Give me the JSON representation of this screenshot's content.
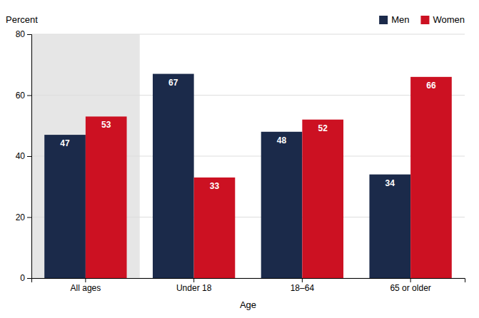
{
  "chart_data": {
    "type": "bar",
    "categories": [
      "All ages",
      "Under 18",
      "18–64",
      "65 or older"
    ],
    "series": [
      {
        "name": "Men",
        "color": "#1b2a4a",
        "values": [
          47,
          67,
          48,
          34
        ]
      },
      {
        "name": "Women",
        "color": "#cc1122",
        "values": [
          53,
          33,
          52,
          66
        ]
      }
    ],
    "xlabel": "Age",
    "ylabel": "Percent",
    "ylim": [
      0,
      80
    ],
    "yticks": [
      0,
      20,
      40,
      60,
      80
    ],
    "grid": true,
    "legend": "top-right",
    "data_labels": true
  }
}
